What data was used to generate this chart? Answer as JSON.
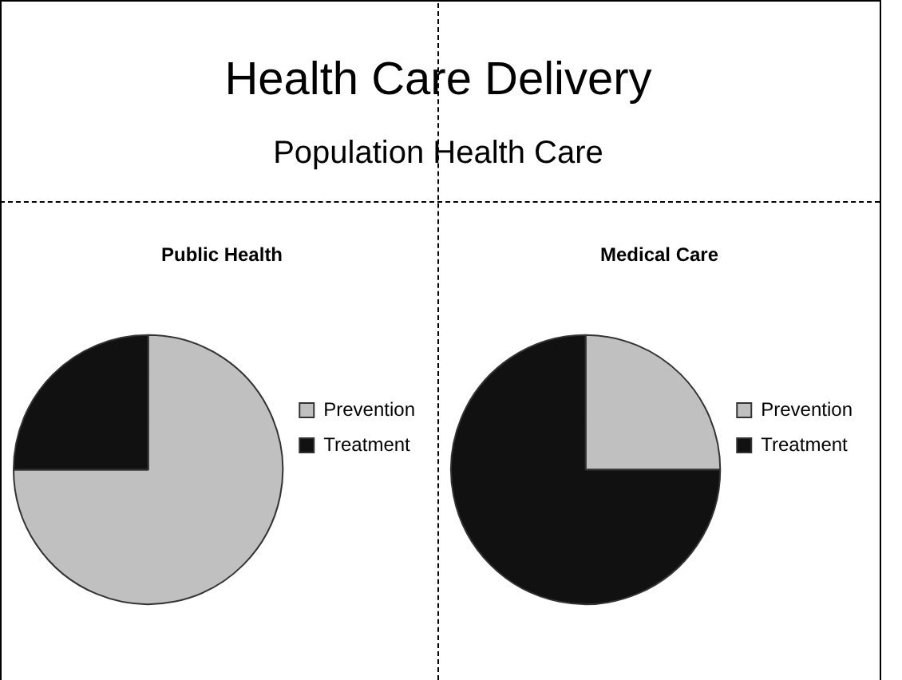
{
  "chart_data": [
    {
      "type": "other",
      "title": "Health Care Delivery",
      "subtitle": "Population Health Care"
    },
    {
      "type": "pie",
      "title": "Public Health",
      "categories": [
        "Prevention",
        "Treatment"
      ],
      "values": [
        75,
        25
      ],
      "colors": [
        "#c0c0c0",
        "#111111"
      ],
      "legend": "right"
    },
    {
      "type": "pie",
      "title": "Medical Care",
      "categories": [
        "Prevention",
        "Treatment"
      ],
      "values": [
        25,
        75
      ],
      "colors": [
        "#c0c0c0",
        "#111111"
      ],
      "legend": "right"
    }
  ]
}
